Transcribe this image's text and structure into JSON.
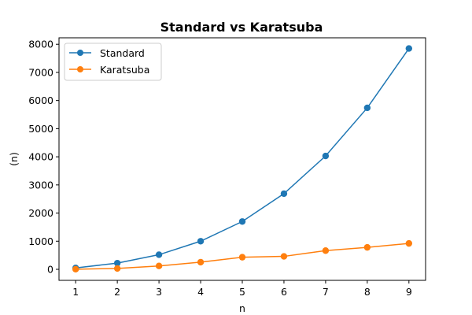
{
  "chart_data": {
    "type": "line",
    "title": "Standard vs Karatsuba",
    "xlabel": "n",
    "ylabel": "(n)",
    "x": [
      1,
      2,
      3,
      4,
      5,
      6,
      7,
      8,
      9
    ],
    "xlim": [
      0.6,
      9.4
    ],
    "ylim": [
      -392,
      8230
    ],
    "xticks": [
      "1",
      "2",
      "3",
      "4",
      "5",
      "6",
      "7",
      "8",
      "9"
    ],
    "yticks": [
      "0",
      "1000",
      "2000",
      "3000",
      "4000",
      "5000",
      "6000",
      "7000",
      "8000"
    ],
    "grid": false,
    "legend_position": "top-left",
    "series": [
      {
        "name": "Standard",
        "color": "#1f77b4",
        "marker": "circle",
        "values": [
          50,
          220,
          520,
          1000,
          1700,
          2690,
          4030,
          5740,
          7850
        ]
      },
      {
        "name": "Karatsuba",
        "color": "#ff7f0e",
        "marker": "circle",
        "values": [
          5,
          30,
          120,
          255,
          430,
          460,
          665,
          780,
          920
        ]
      }
    ]
  }
}
